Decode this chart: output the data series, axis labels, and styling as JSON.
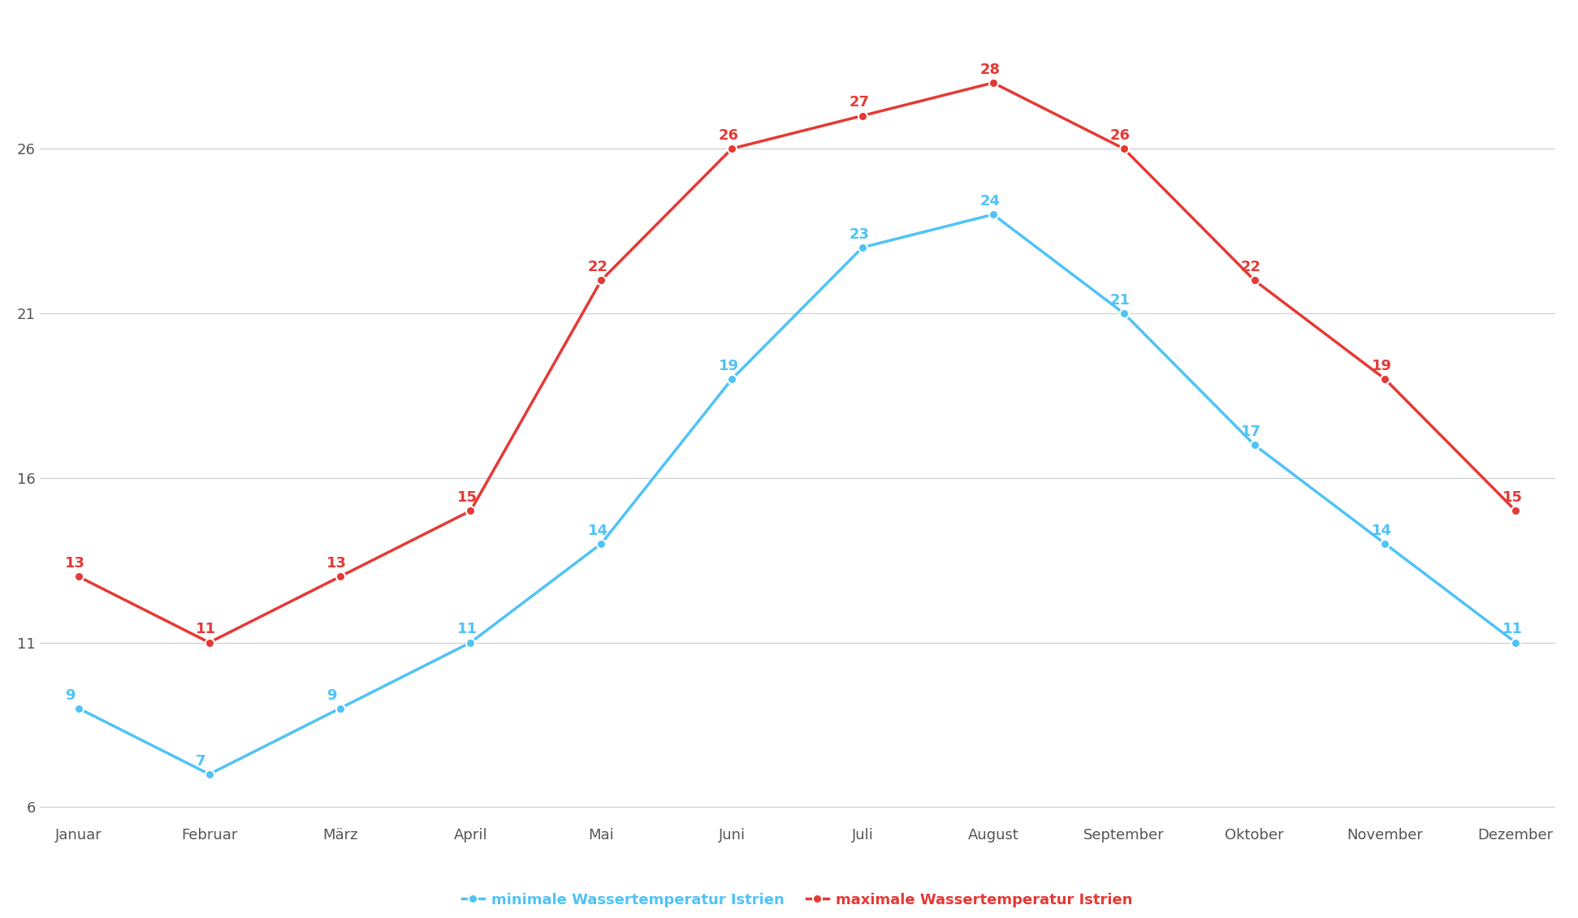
{
  "months": [
    "Januar",
    "Februar",
    "März",
    "April",
    "Mai",
    "Juni",
    "Juli",
    "August",
    "September",
    "Oktober",
    "November",
    "Dezember"
  ],
  "min_temps": [
    9,
    7,
    9,
    11,
    14,
    19,
    23,
    24,
    21,
    17,
    14,
    11
  ],
  "max_temps": [
    13,
    11,
    13,
    15,
    22,
    26,
    27,
    28,
    26,
    22,
    19,
    15
  ],
  "min_color": "#4fc3f7",
  "max_color": "#e53935",
  "min_label": "minimale Wassertemperatur Istrien",
  "max_label": "maximale Wassertemperatur Istrien",
  "yticks": [
    6,
    11,
    16,
    21,
    26
  ],
  "ylim": [
    5.5,
    30
  ],
  "background_color": "#ffffff",
  "grid_color": "#cccccc",
  "line_width": 2.5,
  "marker_size": 8,
  "tick_fontsize": 13,
  "legend_fontsize": 13,
  "annotation_fontsize": 13
}
